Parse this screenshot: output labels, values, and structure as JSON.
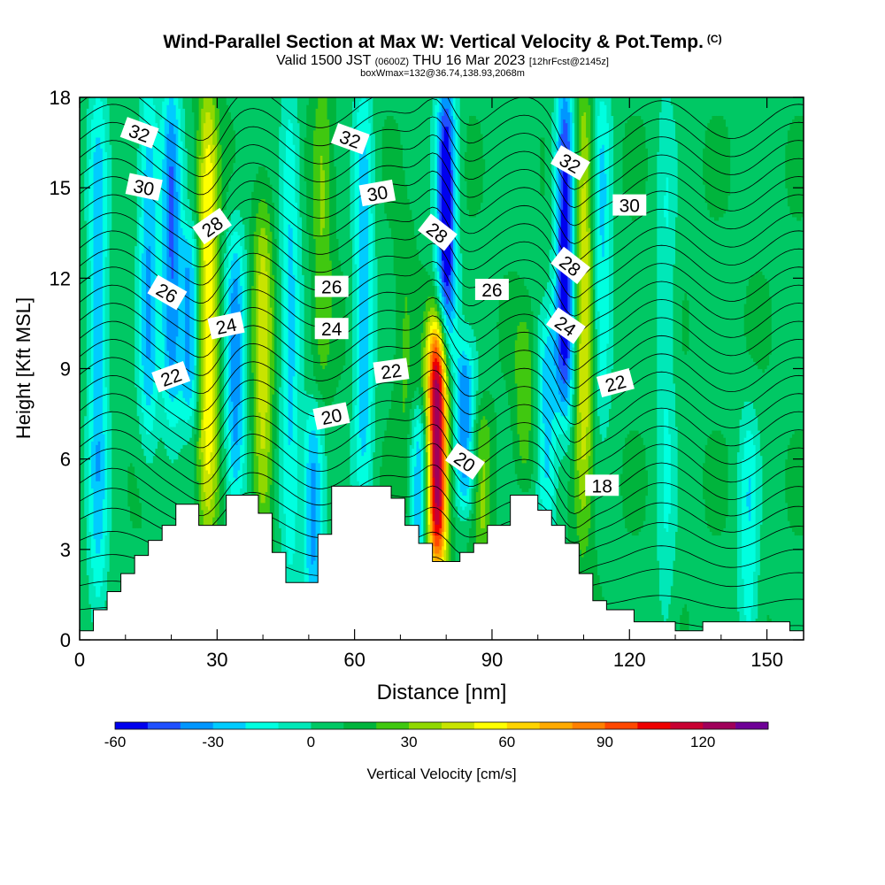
{
  "header": {
    "title": "Wind-Parallel Section at Max W: Vertical Velocity & Pot.Temp.",
    "copyright_mark": "(C)",
    "valid_prefix": "Valid 1500 JST",
    "valid_utc": "(0600Z)",
    "valid_date": "THU 16 Mar 2023",
    "forecast_info": "[12hrFcst@2145z]",
    "box_info": "boxWmax=132@36.74,138.93,2068m"
  },
  "chart_data": {
    "type": "heatmap",
    "xlabel": "Distance [nm]",
    "ylabel": "Height [Kft MSL]",
    "xlim": [
      0,
      158
    ],
    "ylim": [
      0,
      18
    ],
    "x_ticks": [
      "0",
      "30",
      "60",
      "90",
      "120",
      "150"
    ],
    "x_tick_values": [
      0,
      30,
      60,
      90,
      120,
      150
    ],
    "y_ticks": [
      "0",
      "3",
      "6",
      "9",
      "12",
      "15",
      "18"
    ],
    "y_tick_values": [
      0,
      3,
      6,
      9,
      12,
      15,
      18
    ],
    "x_minor_step": 10,
    "colorbar": {
      "label": "Vertical Velocity [cm/s]",
      "tick_labels": [
        "-60",
        "-30",
        "0",
        "30",
        "60",
        "90",
        "120"
      ],
      "tick_values": [
        -60,
        -30,
        0,
        30,
        60,
        90,
        120
      ],
      "min": -60,
      "max": 140,
      "step": 10,
      "colors": [
        "#0000ee",
        "#2050ff",
        "#0096ff",
        "#00ccff",
        "#00ffe0",
        "#00e8b8",
        "#00c864",
        "#00b43c",
        "#40c810",
        "#90d800",
        "#c8e400",
        "#ffff00",
        "#ffd400",
        "#ffaa00",
        "#ff8000",
        "#ff4800",
        "#ee0000",
        "#c80032",
        "#a0005a",
        "#6e0096"
      ]
    },
    "velocity_features": [
      {
        "x": 4,
        "z0": 1,
        "z1": 18,
        "w": -28
      },
      {
        "x": 15,
        "z0": 7,
        "z1": 18,
        "w": -30
      },
      {
        "x": 20,
        "z0": 8,
        "z1": 18,
        "w": -40
      },
      {
        "x": 24,
        "z0": 8,
        "z1": 13,
        "w": -35
      },
      {
        "x": 28,
        "z0": 4,
        "z1": 18,
        "w": 60
      },
      {
        "x": 34,
        "z0": 5,
        "z1": 13,
        "w": -35
      },
      {
        "x": 40,
        "z0": 4,
        "z1": 14,
        "w": 45
      },
      {
        "x": 46,
        "z0": 2,
        "z1": 18,
        "w": -22
      },
      {
        "x": 51,
        "z0": 2,
        "z1": 7,
        "w": -35
      },
      {
        "x": 53,
        "z0": 9,
        "z1": 18,
        "w": 30
      },
      {
        "x": 62,
        "z0": 5,
        "z1": 18,
        "w": -28
      },
      {
        "x": 71,
        "z0": 4,
        "z1": 13,
        "w": 22
      },
      {
        "x": 74,
        "z0": 3,
        "z1": 7,
        "w": -28
      },
      {
        "x": 78,
        "z0": 3,
        "z1": 10,
        "w": 132
      },
      {
        "x": 80,
        "z0": 10,
        "z1": 18,
        "w": -60
      },
      {
        "x": 84,
        "z0": 5,
        "z1": 9,
        "w": -40
      },
      {
        "x": 88,
        "z0": 3,
        "z1": 7,
        "w": 30
      },
      {
        "x": 97,
        "z0": 6,
        "z1": 10,
        "w": 28
      },
      {
        "x": 102,
        "z0": 4,
        "z1": 10,
        "w": -25
      },
      {
        "x": 106,
        "z0": 8,
        "z1": 18,
        "w": -60
      },
      {
        "x": 110,
        "z0": 4,
        "z1": 18,
        "w": 50
      },
      {
        "x": 114,
        "z0": 8,
        "z1": 18,
        "w": -22
      },
      {
        "x": 128,
        "z0": 0,
        "z1": 18,
        "w": -10
      },
      {
        "x": 146,
        "z0": 0,
        "z1": 7,
        "w": -18
      }
    ],
    "terrain_profile": [
      {
        "x": 0,
        "z": 0.3
      },
      {
        "x": 3,
        "z": 1.0
      },
      {
        "x": 6,
        "z": 1.6
      },
      {
        "x": 9,
        "z": 2.2
      },
      {
        "x": 12,
        "z": 2.8
      },
      {
        "x": 15,
        "z": 3.3
      },
      {
        "x": 18,
        "z": 3.8
      },
      {
        "x": 21,
        "z": 4.5
      },
      {
        "x": 26,
        "z": 3.8
      },
      {
        "x": 32,
        "z": 4.8
      },
      {
        "x": 39,
        "z": 4.2
      },
      {
        "x": 42,
        "z": 2.9
      },
      {
        "x": 45,
        "z": 1.9
      },
      {
        "x": 52,
        "z": 3.5
      },
      {
        "x": 55,
        "z": 5.1
      },
      {
        "x": 68,
        "z": 4.7
      },
      {
        "x": 71,
        "z": 3.8
      },
      {
        "x": 74,
        "z": 3.2
      },
      {
        "x": 77,
        "z": 2.6
      },
      {
        "x": 83,
        "z": 2.9
      },
      {
        "x": 86,
        "z": 3.2
      },
      {
        "x": 89,
        "z": 3.8
      },
      {
        "x": 94,
        "z": 4.8
      },
      {
        "x": 100,
        "z": 4.3
      },
      {
        "x": 103,
        "z": 3.8
      },
      {
        "x": 106,
        "z": 3.2
      },
      {
        "x": 109,
        "z": 2.2
      },
      {
        "x": 112,
        "z": 1.3
      },
      {
        "x": 115,
        "z": 1.0
      },
      {
        "x": 121,
        "z": 0.6
      },
      {
        "x": 130,
        "z": 0.3
      },
      {
        "x": 136,
        "z": 0.6
      },
      {
        "x": 150,
        "z": 0.6
      },
      {
        "x": 155,
        "z": 0.3
      },
      {
        "x": 158,
        "z": 0.3
      }
    ],
    "theta_contours": [
      {
        "base": 1.0,
        "value": 17
      },
      {
        "base": 1.8,
        "value": 17.5
      },
      {
        "base": 2.6,
        "value": 18
      },
      {
        "base": 3.3,
        "value": 18.5
      },
      {
        "base": 4.0,
        "value": 19
      },
      {
        "base": 4.6,
        "value": 19.5
      },
      {
        "base": 5.2,
        "value": 20
      },
      {
        "base": 5.8,
        "value": 20.5
      },
      {
        "base": 6.4,
        "value": 21
      },
      {
        "base": 7.0,
        "value": 21.5
      },
      {
        "base": 7.6,
        "value": 22
      },
      {
        "base": 8.2,
        "value": 22.5
      },
      {
        "base": 8.8,
        "value": 23
      },
      {
        "base": 9.4,
        "value": 23.5
      },
      {
        "base": 10.0,
        "value": 24
      },
      {
        "base": 10.6,
        "value": 24.5
      },
      {
        "base": 11.2,
        "value": 25
      },
      {
        "base": 11.8,
        "value": 25.5
      },
      {
        "base": 12.4,
        "value": 26
      },
      {
        "base": 13.0,
        "value": 26.5
      },
      {
        "base": 13.6,
        "value": 27
      },
      {
        "base": 14.2,
        "value": 27.5
      },
      {
        "base": 14.8,
        "value": 28
      },
      {
        "base": 15.4,
        "value": 28.5
      },
      {
        "base": 16.0,
        "value": 29
      },
      {
        "base": 16.6,
        "value": 29.5
      },
      {
        "base": 17.2,
        "value": 30
      },
      {
        "base": 17.8,
        "value": 30.5
      }
    ],
    "contour_labels": [
      {
        "text": "32",
        "x": 13,
        "z": 16.8,
        "rot": 20
      },
      {
        "text": "30",
        "x": 14,
        "z": 15.0,
        "rot": 12
      },
      {
        "text": "28",
        "x": 29,
        "z": 13.7,
        "rot": -35
      },
      {
        "text": "26",
        "x": 19,
        "z": 11.5,
        "rot": 30
      },
      {
        "text": "24",
        "x": 32,
        "z": 10.4,
        "rot": -12
      },
      {
        "text": "22",
        "x": 20,
        "z": 8.7,
        "rot": -20
      },
      {
        "text": "32",
        "x": 59,
        "z": 16.6,
        "rot": 20
      },
      {
        "text": "30",
        "x": 65,
        "z": 14.8,
        "rot": -10
      },
      {
        "text": "28",
        "x": 78,
        "z": 13.5,
        "rot": 38
      },
      {
        "text": "26",
        "x": 55,
        "z": 11.7,
        "rot": 0
      },
      {
        "text": "24",
        "x": 55,
        "z": 10.3,
        "rot": 0
      },
      {
        "text": "22",
        "x": 68,
        "z": 8.9,
        "rot": -8
      },
      {
        "text": "20",
        "x": 55,
        "z": 7.4,
        "rot": -12
      },
      {
        "text": "26",
        "x": 90,
        "z": 11.6,
        "rot": 0
      },
      {
        "text": "20",
        "x": 84,
        "z": 5.9,
        "rot": 35
      },
      {
        "text": "32",
        "x": 107,
        "z": 15.8,
        "rot": 30
      },
      {
        "text": "28",
        "x": 107,
        "z": 12.4,
        "rot": 38
      },
      {
        "text": "24",
        "x": 106,
        "z": 10.4,
        "rot": 35
      },
      {
        "text": "30",
        "x": 120,
        "z": 14.4,
        "rot": 0
      },
      {
        "text": "22",
        "x": 117,
        "z": 8.5,
        "rot": -15
      },
      {
        "text": "18",
        "x": 114,
        "z": 5.1,
        "rot": 0
      }
    ]
  }
}
